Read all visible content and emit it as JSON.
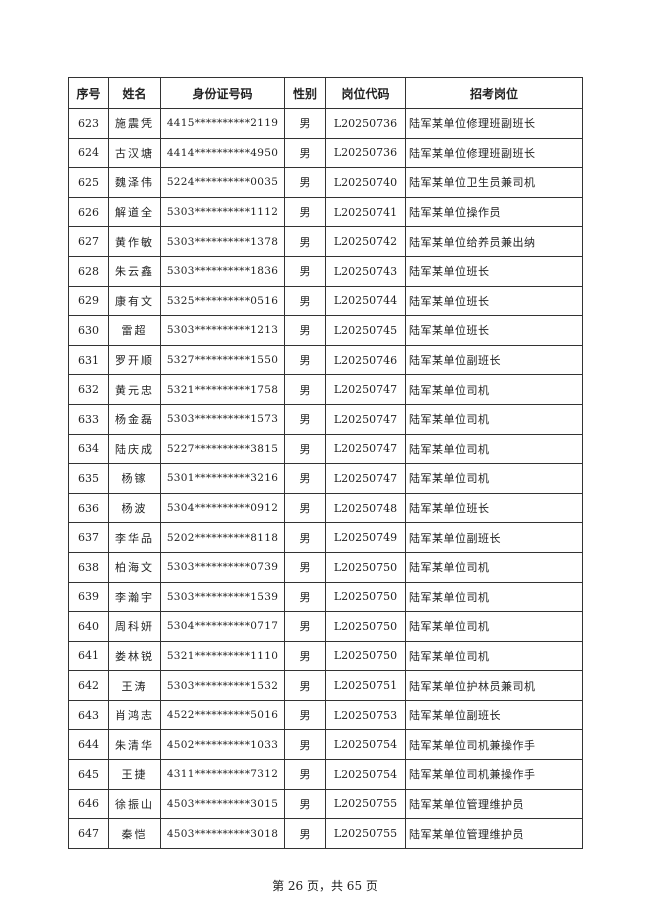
{
  "table": {
    "headers": [
      "序号",
      "姓名",
      "身份证号码",
      "性别",
      "岗位代码",
      "招考岗位"
    ],
    "rows": [
      [
        "623",
        "施震凭",
        "4415**********2119",
        "男",
        "L20250736",
        "陆军某单位修理班副班长"
      ],
      [
        "624",
        "古汉塘",
        "4414**********4950",
        "男",
        "L20250736",
        "陆军某单位修理班副班长"
      ],
      [
        "625",
        "魏泽伟",
        "5224**********0035",
        "男",
        "L20250740",
        "陆军某单位卫生员兼司机"
      ],
      [
        "626",
        "解道全",
        "5303**********1112",
        "男",
        "L20250741",
        "陆军某单位操作员"
      ],
      [
        "627",
        "黄作敏",
        "5303**********1378",
        "男",
        "L20250742",
        "陆军某单位给养员兼出纳"
      ],
      [
        "628",
        "朱云鑫",
        "5303**********1836",
        "男",
        "L20250743",
        "陆军某单位班长"
      ],
      [
        "629",
        "康有文",
        "5325**********0516",
        "男",
        "L20250744",
        "陆军某单位班长"
      ],
      [
        "630",
        "雷超",
        "5303**********1213",
        "男",
        "L20250745",
        "陆军某单位班长"
      ],
      [
        "631",
        "罗开顺",
        "5327**********1550",
        "男",
        "L20250746",
        "陆军某单位副班长"
      ],
      [
        "632",
        "黄元忠",
        "5321**********1758",
        "男",
        "L20250747",
        "陆军某单位司机"
      ],
      [
        "633",
        "杨金磊",
        "5303**********1573",
        "男",
        "L20250747",
        "陆军某单位司机"
      ],
      [
        "634",
        "陆庆成",
        "5227**********3815",
        "男",
        "L20250747",
        "陆军某单位司机"
      ],
      [
        "635",
        "杨镓",
        "5301**********3216",
        "男",
        "L20250747",
        "陆军某单位司机"
      ],
      [
        "636",
        "杨波",
        "5304**********0912",
        "男",
        "L20250748",
        "陆军某单位班长"
      ],
      [
        "637",
        "李华品",
        "5202**********8118",
        "男",
        "L20250749",
        "陆军某单位副班长"
      ],
      [
        "638",
        "柏海文",
        "5303**********0739",
        "男",
        "L20250750",
        "陆军某单位司机"
      ],
      [
        "639",
        "李瀚宇",
        "5303**********1539",
        "男",
        "L20250750",
        "陆军某单位司机"
      ],
      [
        "640",
        "周科妍",
        "5304**********0717",
        "男",
        "L20250750",
        "陆军某单位司机"
      ],
      [
        "641",
        "娄林锐",
        "5321**********1110",
        "男",
        "L20250750",
        "陆军某单位司机"
      ],
      [
        "642",
        "王涛",
        "5303**********1532",
        "男",
        "L20250751",
        "陆军某单位护林员兼司机"
      ],
      [
        "643",
        "肖鸿志",
        "4522**********5016",
        "男",
        "L20250753",
        "陆军某单位副班长"
      ],
      [
        "644",
        "朱清华",
        "4502**********1033",
        "男",
        "L20250754",
        "陆军某单位司机兼操作手"
      ],
      [
        "645",
        "王捷",
        "4311**********7312",
        "男",
        "L20250754",
        "陆军某单位司机兼操作手"
      ],
      [
        "646",
        "徐振山",
        "4503**********3015",
        "男",
        "L20250755",
        "陆军某单位管理维护员"
      ],
      [
        "647",
        "秦恺",
        "4503**********3018",
        "男",
        "L20250755",
        "陆军某单位管理维护员"
      ]
    ]
  },
  "footer": "第 26 页，共 65 页"
}
